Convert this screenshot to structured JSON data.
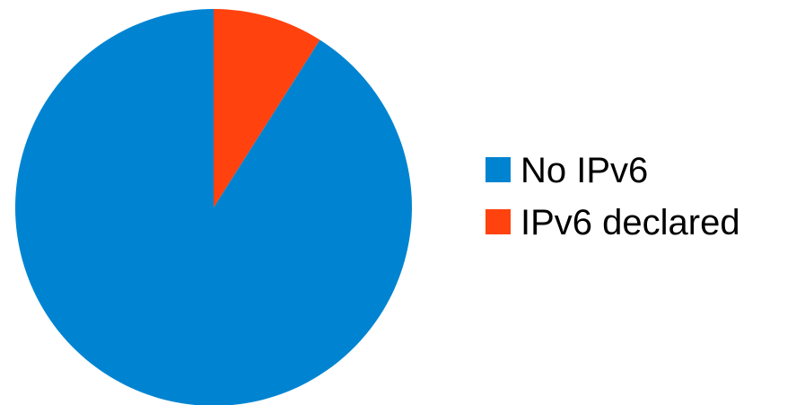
{
  "chart_data": {
    "type": "pie",
    "title": "",
    "slices": [
      {
        "label": "No IPv6",
        "value": 91,
        "color": "#0084d1"
      },
      {
        "label": "IPv6 declared",
        "value": 9,
        "color": "#ff420e"
      }
    ],
    "start_angle_deg": 0,
    "direction": "clockwise",
    "legend_position": "right"
  }
}
